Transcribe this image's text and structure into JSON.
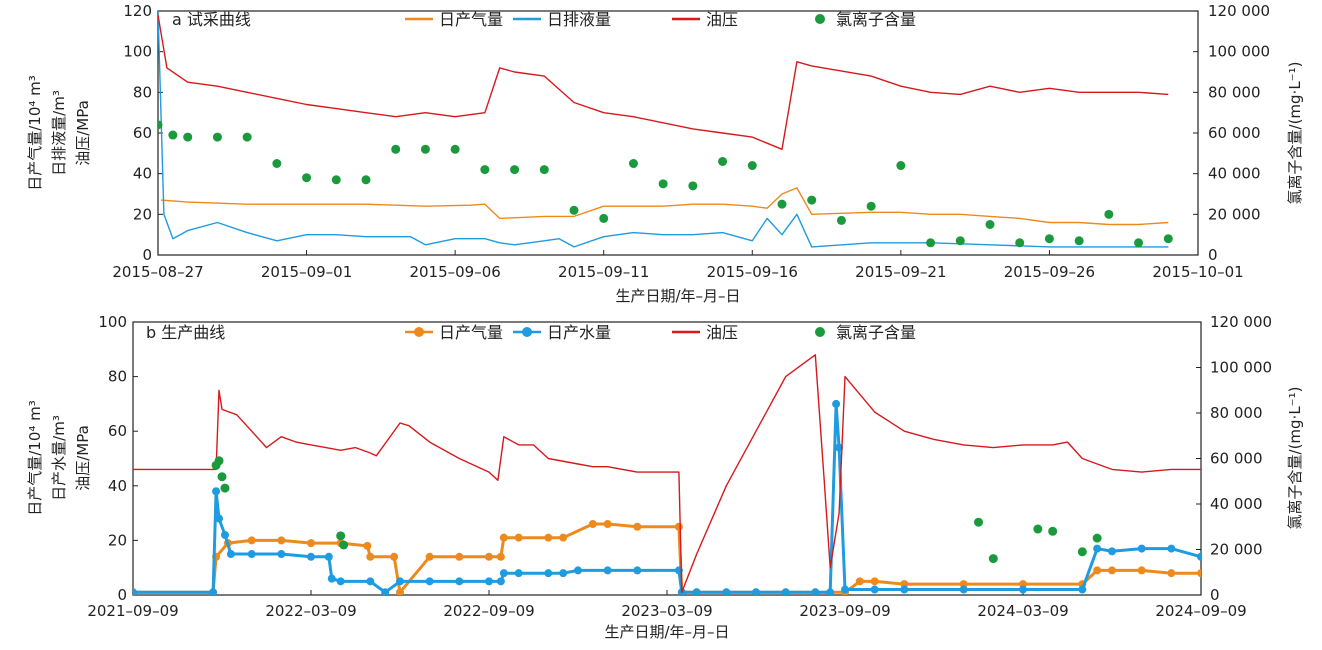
{
  "chart_data": [
    {
      "type": "line",
      "title": "a 试采曲线",
      "xlabel": "生产日期/年–月–日",
      "ylabel_left": [
        "日产气量/10⁴ m³",
        "日排液量/m³",
        "油压/MPa"
      ],
      "ylabel_right": "氯离子含量/(mg·L⁻¹)",
      "x_ticks": [
        "2015–08–27",
        "2015–09–01",
        "2015–09–06",
        "2015–09–11",
        "2015–09–16",
        "2015–09–21",
        "2015–09–26",
        "2015–10–01"
      ],
      "x_range": [
        0,
        35
      ],
      "x_unit": "days since 2015-08-27",
      "ylim_left": [
        0,
        120
      ],
      "y_ticks_left": [
        "0",
        "20",
        "40",
        "60",
        "80",
        "100",
        "120"
      ],
      "ylim_right": [
        0,
        120000
      ],
      "y_ticks_right": [
        "0",
        "20 000",
        "40 000",
        "60 000",
        "80 000",
        "100 000",
        "120 000"
      ],
      "legend": [
        "日产气量",
        "日排液量",
        "油压",
        "氯离子含量"
      ],
      "series": [
        {
          "name": "日产气量",
          "color": "#ee8a1c",
          "x": [
            0.1,
            1,
            3,
            5,
            7,
            9,
            10.5,
            11,
            11.5,
            13,
            14,
            15,
            17,
            18,
            19,
            20,
            20.5,
            21,
            21.5,
            22,
            24,
            25,
            26,
            27,
            28,
            29,
            30,
            31,
            32,
            33,
            34
          ],
          "y": [
            27,
            26,
            25,
            25,
            25,
            24,
            24.5,
            25,
            18,
            19,
            19,
            24,
            24,
            25,
            25,
            24,
            23,
            30,
            33,
            20,
            21,
            21,
            20,
            20,
            19,
            18,
            16,
            16,
            15,
            15,
            16
          ]
        },
        {
          "name": "日排液量",
          "color": "#1f9be0",
          "x": [
            0,
            0.2,
            0.5,
            1,
            2,
            3,
            4,
            5,
            6,
            7,
            8,
            8.5,
            9,
            10,
            11,
            11.5,
            12,
            13,
            13.5,
            14,
            15,
            16,
            17,
            18,
            19,
            20,
            20.5,
            21,
            21.5,
            22,
            24,
            26,
            28,
            30,
            32,
            34
          ],
          "y": [
            120,
            20,
            8,
            12,
            16,
            11,
            7,
            10,
            10,
            9,
            9,
            9,
            5,
            8,
            8,
            6,
            5,
            7,
            8,
            4,
            9,
            11,
            10,
            10,
            11,
            7,
            18,
            10,
            20,
            4,
            6,
            6,
            5,
            4,
            4,
            4
          ]
        },
        {
          "name": "油压",
          "color": "#d7191c",
          "x": [
            0,
            0.3,
            1,
            2,
            3,
            4,
            5,
            6,
            7,
            8,
            8.5,
            9,
            10,
            11,
            11.5,
            12,
            13,
            14,
            15,
            16,
            17,
            18,
            19,
            20,
            20.5,
            21,
            21.5,
            22,
            24,
            25,
            26,
            27,
            28,
            29,
            30,
            31,
            32,
            33,
            34
          ],
          "y": [
            118,
            92,
            85,
            83,
            80,
            77,
            74,
            72,
            70,
            68,
            69,
            70,
            68,
            70,
            92,
            90,
            88,
            75,
            70,
            68,
            65,
            62,
            60,
            58,
            55,
            52,
            95,
            93,
            88,
            83,
            80,
            79,
            83,
            80,
            82,
            80,
            80,
            80,
            79
          ]
        },
        {
          "name": "氯离子含量",
          "color": "#1a9a3c",
          "x": [
            0,
            0.5,
            1,
            2,
            3,
            4,
            5,
            6,
            7,
            8,
            9,
            10,
            11,
            12,
            13,
            14,
            15,
            16,
            17,
            18,
            19,
            20,
            21,
            22,
            23,
            24,
            25,
            26,
            27,
            28,
            29,
            30,
            31,
            32,
            33,
            34
          ],
          "y": [
            64000,
            59000,
            58000,
            58000,
            58000,
            45000,
            38000,
            37000,
            37000,
            52000,
            52000,
            52000,
            42000,
            42000,
            42000,
            22000,
            18000,
            45000,
            35000,
            34000,
            46000,
            44000,
            25000,
            27000,
            17000,
            24000,
            44000,
            6000,
            7000,
            15000,
            6000,
            8000,
            7000,
            20000,
            6000,
            8000
          ]
        }
      ]
    },
    {
      "type": "line",
      "title": "b 生产曲线",
      "xlabel": "生产日期/年–月–日",
      "ylabel_left": [
        "日产气量/10⁴ m³",
        "日产水量/m³",
        "油压/MPa"
      ],
      "ylabel_right": "氯离子含量/(mg·L⁻¹)",
      "x_ticks": [
        "2021–09–09",
        "2022–03–09",
        "2022–09–09",
        "2023–03–09",
        "2023–09–09",
        "2024–03–09",
        "2024–09–09"
      ],
      "x_range": [
        0,
        36
      ],
      "x_unit": "months since 2021-09-09",
      "ylim_left": [
        0,
        100
      ],
      "y_ticks_left": [
        "0",
        "20",
        "40",
        "60",
        "80",
        "100"
      ],
      "ylim_right": [
        0,
        120000
      ],
      "y_ticks_right": [
        "0",
        "20 000",
        "40 000",
        "60 000",
        "80 000",
        "100 000",
        "120 000"
      ],
      "legend": [
        "日产气量",
        "日产水量",
        "油压",
        "氯离子含量"
      ],
      "series": [
        {
          "name": "日产气量",
          "color": "#ee8a1c",
          "x": [
            0,
            2.7,
            2.8,
            3.2,
            4,
            5,
            6,
            7,
            7.9,
            8,
            8.8,
            9,
            10,
            11,
            12,
            12.4,
            12.5,
            13,
            14,
            14.5,
            15.5,
            16,
            17,
            18.4,
            18.5,
            19,
            20,
            21,
            22,
            23,
            24,
            24.5,
            25,
            26,
            28,
            30,
            32,
            32.5,
            33,
            34,
            35,
            36
          ],
          "y": [
            1,
            1,
            14,
            19,
            20,
            20,
            19,
            19,
            18,
            14,
            14,
            1,
            14,
            14,
            14,
            14,
            21,
            21,
            21,
            21,
            26,
            26,
            25,
            25,
            1,
            1,
            1,
            1,
            1,
            1,
            1,
            5,
            5,
            4,
            4,
            4,
            4,
            9,
            9,
            9,
            8,
            8
          ]
        },
        {
          "name": "日产水量",
          "color": "#1f9be0",
          "x": [
            0,
            2.7,
            2.8,
            2.9,
            3.1,
            3.3,
            4,
            5,
            6,
            6.6,
            6.7,
            7,
            8,
            8.5,
            9,
            10,
            11,
            12,
            12.4,
            12.5,
            13,
            14,
            14.5,
            15,
            16,
            17,
            18.4,
            18.5,
            19,
            20,
            21,
            22,
            23,
            23.5,
            23.7,
            23.8,
            24,
            25,
            26,
            28,
            30,
            32,
            32.5,
            33,
            34,
            35,
            36
          ],
          "y": [
            1,
            1,
            38,
            28,
            22,
            15,
            15,
            15,
            14,
            14,
            6,
            5,
            5,
            1,
            5,
            5,
            5,
            5,
            5,
            8,
            8,
            8,
            8,
            9,
            9,
            9,
            9,
            1,
            1,
            1,
            1,
            1,
            1,
            1,
            70,
            54,
            2,
            2,
            2,
            2,
            2,
            2,
            17,
            16,
            17,
            17,
            14
          ]
        },
        {
          "name": "油压",
          "color": "#d7191c",
          "x": [
            0,
            2.7,
            2.8,
            2.9,
            3,
            3.5,
            4,
            4.5,
            5,
            5.5,
            6,
            6.5,
            7,
            7.5,
            8,
            8.2,
            9,
            9.3,
            10,
            11,
            12,
            12.3,
            12.5,
            13,
            13.5,
            14,
            15,
            15.5,
            16,
            17,
            18,
            18.4,
            18.5,
            19,
            20,
            21,
            22,
            23,
            23.3,
            23.5,
            23.8,
            24,
            25,
            26,
            27,
            28,
            29,
            30,
            31,
            31.5,
            32,
            32.5,
            33,
            34,
            35,
            36
          ],
          "y": [
            46,
            46,
            46,
            75,
            68,
            66,
            60,
            54,
            58,
            56,
            55,
            54,
            53,
            54,
            52,
            51,
            63,
            62,
            56,
            50,
            45,
            42,
            58,
            55,
            55,
            50,
            48,
            47,
            47,
            45,
            45,
            45,
            1,
            15,
            40,
            60,
            80,
            88,
            42,
            10,
            30,
            80,
            67,
            60,
            57,
            55,
            54,
            55,
            55,
            56,
            50,
            48,
            46,
            45,
            46,
            46
          ]
        },
        {
          "name": "氯离子含量",
          "color": "#1a9a3c",
          "x": [
            2.8,
            2.9,
            3,
            3.1,
            7,
            7.1,
            28.5,
            29,
            30.5,
            31,
            32,
            32.5
          ],
          "y": [
            57000,
            59000,
            52000,
            47000,
            26000,
            22000,
            32000,
            16000,
            29000,
            28000,
            19000,
            25000
          ]
        }
      ]
    }
  ]
}
